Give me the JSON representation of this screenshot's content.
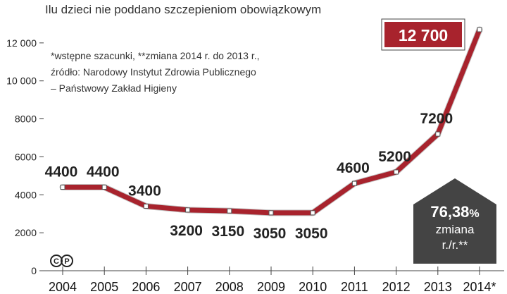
{
  "chart_data": {
    "type": "line",
    "title": "Ilu dzieci nie poddano szczepieniom obowiązkowym",
    "notes": [
      "*wstępne szacunki, **zmiana 2014 r. do 2013 r.,",
      "źródło: Narodowy Instytut Zdrowia Publicznego",
      "– Państwowy Zakład Higieny"
    ],
    "categories": [
      "2004",
      "2005",
      "2006",
      "2007",
      "2008",
      "2009",
      "2010",
      "2011",
      "2012",
      "2013",
      "2014*"
    ],
    "values": [
      4400,
      4400,
      3400,
      3200,
      3150,
      3050,
      3050,
      4600,
      5200,
      7200,
      12700
    ],
    "data_labels": [
      "4400",
      "4400",
      "3400",
      "3200",
      "3150",
      "3050",
      "3050",
      "4600",
      "5200",
      "7200",
      "12 700"
    ],
    "yticks": [
      0,
      2000,
      4000,
      6000,
      8000,
      10000,
      12000
    ],
    "ytick_labels": [
      "0",
      "2000",
      "4000",
      "6000",
      "8000",
      "10 000",
      "12 000"
    ],
    "ylim": [
      0,
      12700
    ],
    "grid": false,
    "line_color": "#a8232d",
    "highlight_color": "#a8232d",
    "badge": {
      "value": "76,38",
      "unit": "%",
      "line1": "zmiana",
      "line2": "r./r.**",
      "color": "#444444"
    },
    "license_mark": "CC"
  }
}
